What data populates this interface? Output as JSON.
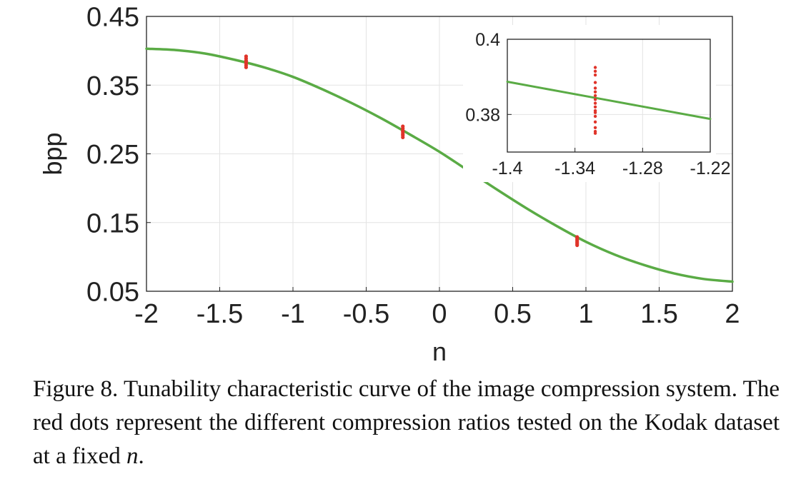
{
  "chart_data": [
    {
      "type": "line",
      "xlabel": "n",
      "ylabel": "bpp",
      "xlim": [
        -2,
        2
      ],
      "ylim": [
        0.05,
        0.45
      ],
      "xticks": [
        "-2",
        "-1.5",
        "-1",
        "-0.5",
        "0",
        "0.5",
        "1",
        "1.5",
        "2"
      ],
      "yticks": [
        "0.05",
        "0.15",
        "0.25",
        "0.35",
        "0.45"
      ],
      "grid": true,
      "series": [
        {
          "kind": "line",
          "color": "#5aab45",
          "x": [
            -2.0,
            -1.8,
            -1.6,
            -1.4,
            -1.2,
            -1.0,
            -0.8,
            -0.6,
            -0.4,
            -0.2,
            0.0,
            0.2,
            0.4,
            0.6,
            0.8,
            1.0,
            1.2,
            1.4,
            1.6,
            1.8,
            2.0
          ],
          "y": [
            0.403,
            0.401,
            0.396,
            0.387,
            0.376,
            0.362,
            0.344,
            0.324,
            0.302,
            0.278,
            0.253,
            0.225,
            0.197,
            0.17,
            0.145,
            0.122,
            0.103,
            0.088,
            0.076,
            0.068,
            0.064
          ]
        },
        {
          "kind": "scatter",
          "color": "#e0342a",
          "x": [
            -1.32,
            -1.32,
            -1.32,
            -1.32,
            -1.32,
            -1.32,
            -1.32,
            -0.25,
            -0.25,
            -0.25,
            -0.25,
            -0.25,
            -0.25,
            -0.25,
            0.94,
            0.94,
            0.94,
            0.94,
            0.94,
            0.94,
            0.94
          ],
          "y": [
            0.376,
            0.379,
            0.382,
            0.384,
            0.386,
            0.389,
            0.392,
            0.274,
            0.277,
            0.279,
            0.282,
            0.284,
            0.287,
            0.29,
            0.117,
            0.119,
            0.121,
            0.123,
            0.125,
            0.127,
            0.129
          ]
        }
      ]
    },
    {
      "type": "line",
      "inset": true,
      "xlim": [
        -1.4,
        -1.22
      ],
      "ylim": [
        0.37,
        0.4
      ],
      "xticks": [
        "-1.4",
        "-1.34",
        "-1.28",
        "-1.22"
      ],
      "yticks": [
        "0.38",
        "0.4"
      ],
      "grid": true,
      "series": [
        {
          "kind": "line",
          "color": "#5aab45",
          "x": [
            -1.4,
            -1.22
          ],
          "y": [
            0.3887,
            0.3788
          ]
        },
        {
          "kind": "scatter",
          "color": "#e0342a",
          "x": [
            -1.322,
            -1.322,
            -1.322,
            -1.322,
            -1.322,
            -1.322,
            -1.322,
            -1.322,
            -1.322,
            -1.322,
            -1.322,
            -1.322,
            -1.322,
            -1.322,
            -1.322,
            -1.322,
            -1.322
          ],
          "y": [
            0.375,
            0.3755,
            0.3765,
            0.378,
            0.3795,
            0.3805,
            0.381,
            0.382,
            0.383,
            0.384,
            0.385,
            0.386,
            0.387,
            0.3885,
            0.3905,
            0.3915,
            0.3925
          ]
        }
      ]
    }
  ],
  "caption": {
    "text": "Figure 8. Tunability characteristic curve of the image compression system.  The red dots represent the different compression ratios tested on the Kodak dataset at a fixed ",
    "var": "n",
    "end": "."
  }
}
